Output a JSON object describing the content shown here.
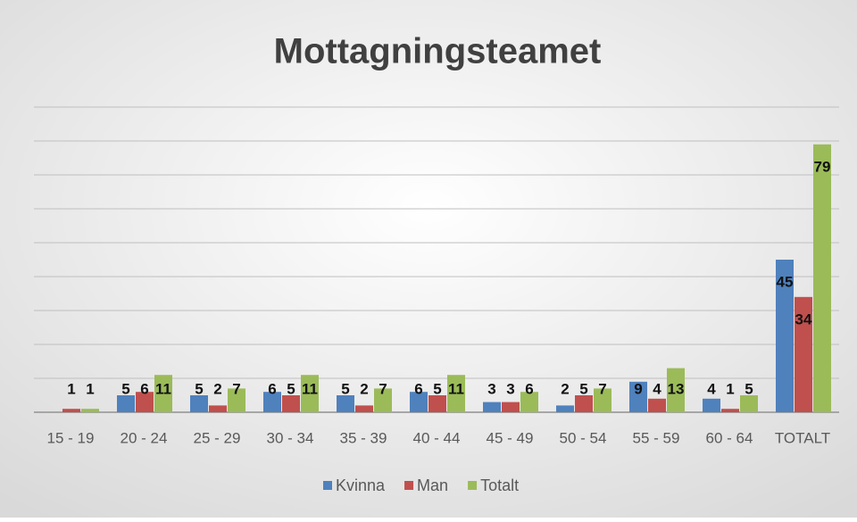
{
  "chart_data": {
    "type": "bar",
    "title": "Mottagningsteamet",
    "categories": [
      "15 - 19",
      "20 - 24",
      "25 - 29",
      "30 - 34",
      "35 - 39",
      "40 - 44",
      "45 - 49",
      "50 - 54",
      "55 - 59",
      "60 - 64",
      "TOTALT"
    ],
    "series": [
      {
        "name": "Kvinna",
        "color": "#4f81bd",
        "values": [
          null,
          5,
          5,
          6,
          5,
          6,
          3,
          2,
          9,
          4,
          45
        ]
      },
      {
        "name": "Man",
        "color": "#c0504d",
        "values": [
          1,
          6,
          2,
          5,
          2,
          5,
          3,
          5,
          4,
          1,
          34
        ]
      },
      {
        "name": "Totalt",
        "color": "#9bbb59",
        "values": [
          1,
          11,
          7,
          11,
          7,
          11,
          6,
          7,
          13,
          5,
          79
        ]
      }
    ],
    "ylim": [
      0,
      90
    ],
    "yticks": [
      0,
      10,
      20,
      30,
      40,
      50,
      60,
      70,
      80,
      90
    ],
    "grid": true,
    "legend": "bottom"
  }
}
